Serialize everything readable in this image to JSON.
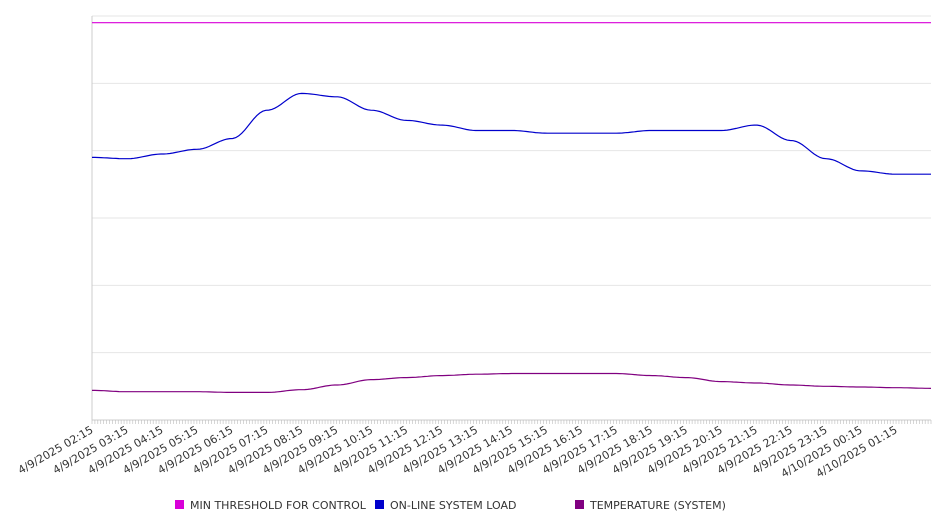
{
  "chart_data": {
    "type": "line",
    "title": "",
    "xlabel": "",
    "ylabel": "",
    "grid": true,
    "legend_position": "bottom",
    "x_tick_labels": [
      "4/9/2025 02:15",
      "4/9/2025 03:15",
      "4/9/2025 04:15",
      "4/9/2025 05:15",
      "4/9/2025 06:15",
      "4/9/2025 07:15",
      "4/9/2025 08:15",
      "4/9/2025 09:15",
      "4/9/2025 10:15",
      "4/9/2025 11:15",
      "4/9/2025 12:15",
      "4/9/2025 13:15",
      "4/9/2025 14:15",
      "4/9/2025 15:15",
      "4/9/2025 16:15",
      "4/9/2025 17:15",
      "4/9/2025 18:15",
      "4/9/2025 19:15",
      "4/9/2025 20:15",
      "4/9/2025 21:15",
      "4/9/2025 22:15",
      "4/9/2025 23:15",
      "4/10/2025 00:15",
      "4/10/2025 01:15"
    ],
    "ylim": [
      0,
      6
    ],
    "y_grid_count": 6,
    "series": [
      {
        "name": "MIN THRESHOLD FOR CONTROL",
        "color": "#d800d8",
        "values": [
          5.9,
          5.9,
          5.9,
          5.9,
          5.9,
          5.9,
          5.9,
          5.9,
          5.9,
          5.9,
          5.9,
          5.9,
          5.9,
          5.9,
          5.9,
          5.9,
          5.9,
          5.9,
          5.9,
          5.9,
          5.9,
          5.9,
          5.9,
          5.9,
          5.9
        ]
      },
      {
        "name": "ON-LINE SYSTEM LOAD",
        "color": "#0000cc",
        "values": [
          3.9,
          3.88,
          3.95,
          4.02,
          4.18,
          4.6,
          4.85,
          4.8,
          4.6,
          4.45,
          4.38,
          4.3,
          4.3,
          4.26,
          4.26,
          4.26,
          4.3,
          4.3,
          4.3,
          4.38,
          4.15,
          3.88,
          3.7,
          3.65,
          3.65
        ]
      },
      {
        "name": "TEMPERATURE (SYSTEM)",
        "color": "#800080",
        "values": [
          0.44,
          0.42,
          0.42,
          0.42,
          0.41,
          0.41,
          0.45,
          0.52,
          0.6,
          0.63,
          0.66,
          0.68,
          0.69,
          0.69,
          0.69,
          0.69,
          0.66,
          0.63,
          0.57,
          0.55,
          0.52,
          0.5,
          0.49,
          0.48,
          0.47
        ]
      }
    ]
  }
}
